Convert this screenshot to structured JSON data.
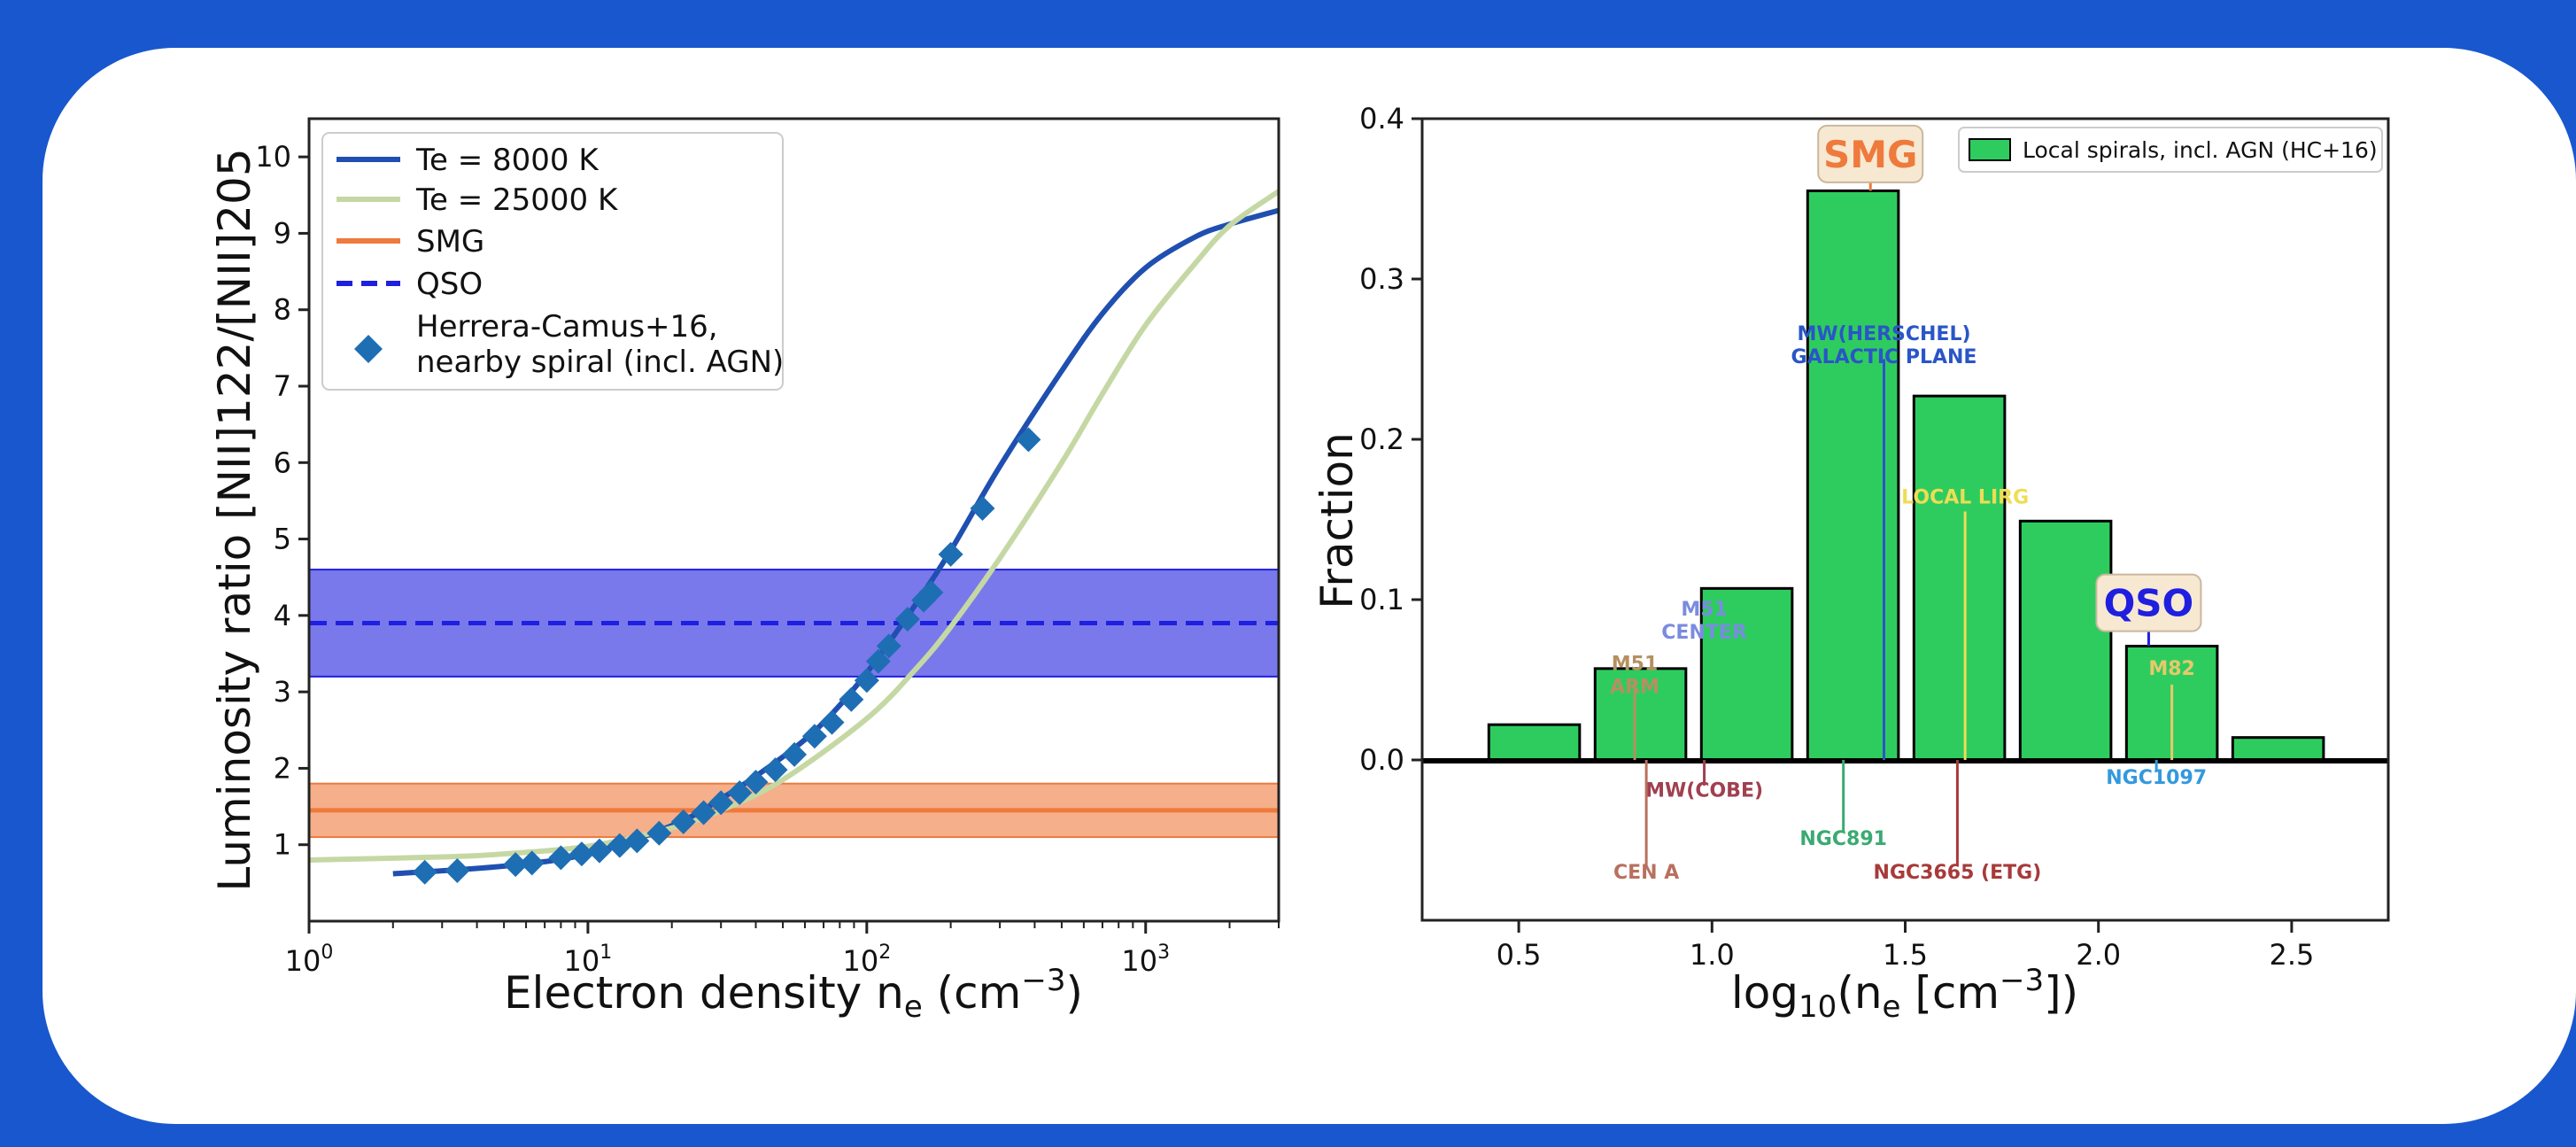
{
  "colors": {
    "frame": "#1857CE",
    "te8000": "#1F4FB0",
    "te25000": "#C5D8A4",
    "smg": "#EE7A3C",
    "qso": "#1F1FE0",
    "herrera": "#1E6EB4",
    "bar": "#2ECC5F"
  },
  "chart_data": [
    {
      "type": "line",
      "xlabel": "Electron density n_e (cm^-3)",
      "xlabel_main": "Electron density n",
      "xlabel_sub": "e",
      "xlabel_unit": " (cm",
      "xlabel_exp": "−3",
      "xlabel_close": ")",
      "ylabel": "Luminosity ratio [NII]122/[NII]205",
      "xscale": "log",
      "xlim": [
        1,
        3000
      ],
      "ylim": [
        0,
        10.5
      ],
      "x_ticks": [
        1,
        10,
        100,
        1000
      ],
      "x_tick_labels": [
        {
          "base": "10",
          "exp": "0"
        },
        {
          "base": "10",
          "exp": "1"
        },
        {
          "base": "10",
          "exp": "2"
        },
        {
          "base": "10",
          "exp": "3"
        }
      ],
      "y_ticks": [
        1,
        2,
        3,
        4,
        5,
        6,
        7,
        8,
        9,
        10
      ],
      "y_tick_labels": [
        "1",
        "2",
        "3",
        "4",
        "5",
        "6",
        "7",
        "8",
        "9",
        "10"
      ],
      "legend_position": "top-left",
      "legend": [
        {
          "label": "Te = 8000 K",
          "style": "line",
          "color": "#1F4FB0"
        },
        {
          "label": "Te = 25000 K",
          "style": "line",
          "color": "#C5D8A4"
        },
        {
          "label": "SMG",
          "style": "line",
          "color": "#EE7A3C"
        },
        {
          "label": "QSO",
          "style": "dashed",
          "color": "#1F1FE0"
        },
        {
          "label": "Herrera-Camus+16,",
          "label2": "nearby spiral (incl. AGN)",
          "style": "diamond",
          "color": "#1E6EB4"
        }
      ],
      "series": [
        {
          "name": "Te = 8000 K",
          "x": [
            2,
            5,
            10,
            20,
            30,
            50,
            70,
            100,
            150,
            200,
            300,
            500,
            700,
            1000,
            1500,
            2000,
            3000
          ],
          "y": [
            0.62,
            0.72,
            0.88,
            1.25,
            1.6,
            2.15,
            2.6,
            3.25,
            4.15,
            4.85,
            5.95,
            7.2,
            7.95,
            8.55,
            8.95,
            9.12,
            9.3
          ]
        },
        {
          "name": "Te = 25000 K",
          "x": [
            1,
            3,
            5,
            10,
            20,
            30,
            50,
            100,
            150,
            200,
            300,
            500,
            700,
            1000,
            1500,
            2000,
            3000
          ],
          "y": [
            0.8,
            0.84,
            0.88,
            0.98,
            1.22,
            1.45,
            1.85,
            2.65,
            3.3,
            3.85,
            4.75,
            6.0,
            6.9,
            7.8,
            8.6,
            9.1,
            9.55
          ]
        },
        {
          "name": "Herrera-Camus+16, nearby spiral (incl. AGN)",
          "x": [
            2.6,
            3.4,
            5.5,
            6.3,
            8,
            9.5,
            11,
            13,
            15,
            18,
            22,
            26,
            30,
            35,
            40,
            47,
            55,
            65,
            75,
            88,
            100,
            110,
            120,
            140,
            160,
            170,
            200,
            260,
            380
          ],
          "y": [
            0.64,
            0.66,
            0.74,
            0.76,
            0.83,
            0.88,
            0.92,
            0.99,
            1.05,
            1.15,
            1.3,
            1.42,
            1.55,
            1.68,
            1.82,
            1.98,
            2.18,
            2.42,
            2.6,
            2.9,
            3.15,
            3.4,
            3.6,
            3.95,
            4.2,
            4.3,
            4.8,
            5.4,
            6.3
          ]
        }
      ],
      "bands": [
        {
          "name": "QSO",
          "center": 3.9,
          "low": 3.2,
          "high": 4.6,
          "color": "#1F1FE0"
        },
        {
          "name": "SMG",
          "center": 1.45,
          "low": 1.1,
          "high": 1.8,
          "color": "#EE7A3C"
        }
      ]
    },
    {
      "type": "bar",
      "xlabel": "log10(n_e [cm^-3])",
      "xlabel_log": "log",
      "xlabel_10": "10",
      "xlabel_mid": "(n",
      "xlabel_e": "e",
      "xlabel_bracket": " [cm",
      "xlabel_exp": "−3",
      "xlabel_close": "])",
      "ylabel": "Fraction",
      "xlim": [
        0.25,
        2.75
      ],
      "ylim": [
        -0.1,
        0.4
      ],
      "x_ticks": [
        0.5,
        1.0,
        1.5,
        2.0,
        2.5
      ],
      "x_tick_labels": [
        "0.5",
        "1.0",
        "1.5",
        "2.0",
        "2.5"
      ],
      "y_ticks": [
        0.0,
        0.1,
        0.2,
        0.3,
        0.4
      ],
      "y_tick_labels": [
        "0.0",
        "0.1",
        "0.2",
        "0.3",
        "0.4"
      ],
      "bin_width": 0.25,
      "bins": [
        0.54,
        0.815,
        1.09,
        1.365,
        1.64,
        1.915,
        2.19,
        2.465
      ],
      "values": [
        0.022,
        0.057,
        0.107,
        0.355,
        0.227,
        0.149,
        0.071,
        0.014
      ],
      "legend": [
        {
          "label": "Local spirals, incl. AGN (HC+16)",
          "color": "#2ECC5F"
        }
      ],
      "legend_position": "top-right",
      "markers": [
        {
          "label": "SMG",
          "x": 1.41,
          "boxed": true,
          "color": "#EE7A3C",
          "label_y": 0.378,
          "line_from": 0.372,
          "line_to": 0.355
        },
        {
          "label": "QSO",
          "x": 2.13,
          "boxed": true,
          "color": "#1F1FE0",
          "label_y": 0.098,
          "line_from": 0.081,
          "line_to": 0.071
        },
        {
          "label": "MW(HERSCHEL)",
          "label2": "GALACTIC PLANE",
          "x": 1.445,
          "color": "#2A55C8",
          "label_y": 0.262,
          "line_from": 0.25,
          "line_to": 0.0
        },
        {
          "label": "LOCAL LIRG",
          "x": 1.655,
          "color": "#EEDD55",
          "label_y": 0.16,
          "line_from": 0.155,
          "line_to": 0.0
        },
        {
          "label": "M51",
          "label2": "CENTER",
          "x": 0.98,
          "color": "#7A8BE0",
          "label_y": 0.09,
          "line_from": 0.0,
          "line_to": 0.0
        },
        {
          "label": "M51",
          "label2": "ARM",
          "x": 0.8,
          "color": "#B59060",
          "label_y": 0.056,
          "line_from": 0.049,
          "line_to": 0.0
        },
        {
          "label": "M82",
          "x": 2.19,
          "color": "#E7C96A",
          "label_y": 0.053,
          "line_from": 0.047,
          "line_to": 0.0
        },
        {
          "label": "MW(COBE)",
          "x": 0.98,
          "color": "#A04050",
          "label_y": -0.023,
          "line_from": 0.0,
          "line_to": -0.016,
          "below": true
        },
        {
          "label": "NGC891",
          "x": 1.34,
          "color": "#3AAA72",
          "label_y": -0.053,
          "line_from": 0.0,
          "line_to": -0.045,
          "below": true
        },
        {
          "label": "CEN A",
          "x": 0.83,
          "color": "#B87060",
          "label_y": -0.074,
          "line_from": 0.0,
          "line_to": -0.066,
          "below": true
        },
        {
          "label": "NGC3665 (ETG)",
          "x": 1.635,
          "color": "#A83A3A",
          "label_y": -0.074,
          "line_from": 0.0,
          "line_to": -0.066,
          "below": true
        },
        {
          "label": "NGC1097",
          "x": 2.15,
          "color": "#3399DD",
          "label_y": -0.015,
          "line_from": 0.0,
          "line_to": -0.007,
          "below": true
        }
      ]
    }
  ]
}
